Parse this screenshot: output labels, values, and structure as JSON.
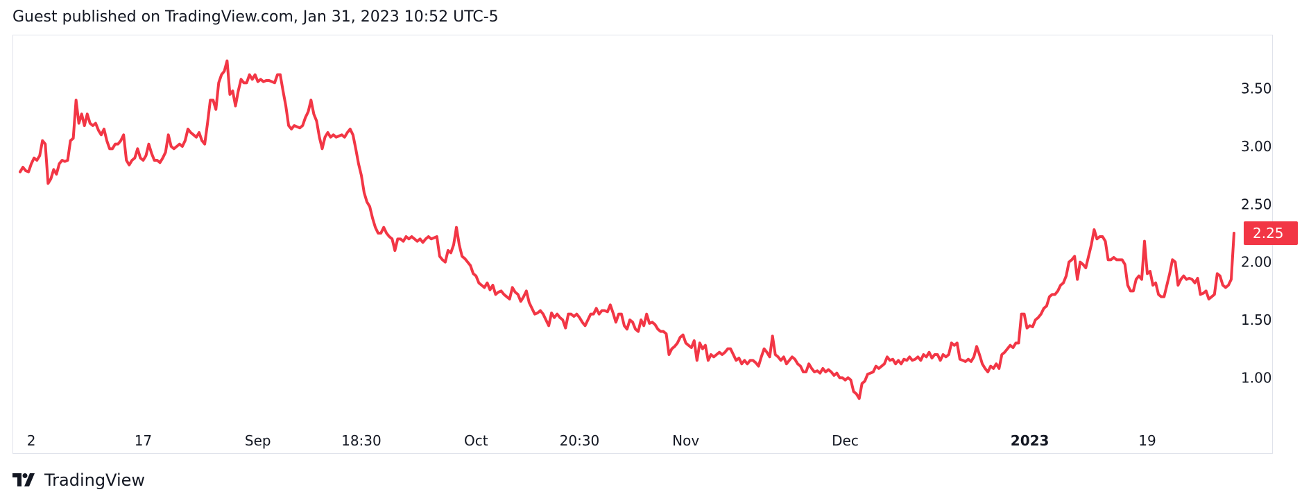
{
  "header": {
    "published": "Guest published on TradingView.com, Jan 31, 2023 10:52 UTC-5"
  },
  "footer": {
    "brand": "TradingView",
    "logo_icon": "tradingview-logo-icon"
  },
  "colors": {
    "line": "#f23645",
    "label_bg": "#f23645",
    "label_text": "#ffffff",
    "border": "#e0e3eb",
    "text": "#131722"
  },
  "chart_data": {
    "type": "line",
    "title": "",
    "xlabel": "",
    "ylabel": "",
    "grid": false,
    "ylim": [
      0.6,
      3.9
    ],
    "y_ticks": [
      {
        "value": 1.0,
        "label": "1.00"
      },
      {
        "value": 1.5,
        "label": "1.50"
      },
      {
        "value": 2.0,
        "label": "2.00"
      },
      {
        "value": 2.5,
        "label": "2.50"
      },
      {
        "value": 3.0,
        "label": "3.00"
      },
      {
        "value": 3.5,
        "label": "3.50"
      }
    ],
    "x_ticks": [
      {
        "index": 4,
        "label": "2",
        "bold": false
      },
      {
        "index": 44,
        "label": "17",
        "bold": false
      },
      {
        "index": 85,
        "label": "Sep",
        "bold": false
      },
      {
        "index": 122,
        "label": "18:30",
        "bold": false
      },
      {
        "index": 163,
        "label": "Oct",
        "bold": false
      },
      {
        "index": 200,
        "label": "20:30",
        "bold": false
      },
      {
        "index": 238,
        "label": "Nov",
        "bold": false
      },
      {
        "index": 295,
        "label": "Dec",
        "bold": false
      },
      {
        "index": 361,
        "label": "2023",
        "bold": true
      },
      {
        "index": 403,
        "label": "19",
        "bold": false
      }
    ],
    "last_price_label": "2.25",
    "series": [
      {
        "values": [
          2.78,
          2.82,
          2.79,
          2.78,
          2.85,
          2.9,
          2.88,
          2.92,
          3.05,
          3.02,
          2.68,
          2.72,
          2.8,
          2.76,
          2.85,
          2.88,
          2.87,
          2.88,
          3.05,
          3.07,
          3.4,
          3.2,
          3.28,
          3.18,
          3.28,
          3.2,
          3.18,
          3.2,
          3.14,
          3.1,
          3.15,
          3.05,
          2.98,
          2.98,
          3.02,
          3.02,
          3.05,
          3.1,
          2.88,
          2.84,
          2.88,
          2.9,
          2.98,
          2.9,
          2.88,
          2.92,
          3.02,
          2.94,
          2.88,
          2.88,
          2.86,
          2.9,
          2.95,
          3.1,
          3.0,
          2.98,
          3.0,
          3.02,
          3.0,
          3.05,
          3.15,
          3.12,
          3.1,
          3.08,
          3.12,
          3.05,
          3.02,
          3.2,
          3.4,
          3.4,
          3.32,
          3.55,
          3.62,
          3.65,
          3.74,
          3.45,
          3.48,
          3.35,
          3.48,
          3.58,
          3.55,
          3.55,
          3.62,
          3.58,
          3.62,
          3.56,
          3.58,
          3.56,
          3.57,
          3.57,
          3.56,
          3.55,
          3.62,
          3.62,
          3.48,
          3.35,
          3.18,
          3.15,
          3.18,
          3.17,
          3.16,
          3.18,
          3.25,
          3.3,
          3.4,
          3.28,
          3.22,
          3.08,
          2.98,
          3.08,
          3.12,
          3.08,
          3.1,
          3.08,
          3.09,
          3.1,
          3.08,
          3.12,
          3.15,
          3.1,
          2.98,
          2.85,
          2.75,
          2.6,
          2.52,
          2.48,
          2.38,
          2.3,
          2.25,
          2.25,
          2.3,
          2.25,
          2.22,
          2.2,
          2.1,
          2.2,
          2.2,
          2.18,
          2.22,
          2.2,
          2.22,
          2.2,
          2.18,
          2.2,
          2.17,
          2.2,
          2.22,
          2.2,
          2.21,
          2.22,
          2.05,
          2.02,
          2.0,
          2.1,
          2.08,
          2.15,
          2.3,
          2.15,
          2.05,
          2.03,
          2.0,
          1.97,
          1.9,
          1.88,
          1.82,
          1.8,
          1.78,
          1.82,
          1.76,
          1.8,
          1.72,
          1.74,
          1.75,
          1.72,
          1.7,
          1.68,
          1.78,
          1.74,
          1.72,
          1.66,
          1.7,
          1.75,
          1.65,
          1.6,
          1.55,
          1.56,
          1.58,
          1.55,
          1.5,
          1.45,
          1.56,
          1.52,
          1.55,
          1.52,
          1.5,
          1.43,
          1.55,
          1.55,
          1.53,
          1.55,
          1.52,
          1.48,
          1.45,
          1.5,
          1.55,
          1.55,
          1.6,
          1.55,
          1.58,
          1.58,
          1.57,
          1.63,
          1.56,
          1.48,
          1.55,
          1.55,
          1.45,
          1.42,
          1.5,
          1.48,
          1.42,
          1.4,
          1.5,
          1.45,
          1.55,
          1.47,
          1.48,
          1.46,
          1.42,
          1.4,
          1.4,
          1.38,
          1.2,
          1.25,
          1.27,
          1.3,
          1.35,
          1.37,
          1.3,
          1.28,
          1.26,
          1.32,
          1.15,
          1.3,
          1.25,
          1.28,
          1.15,
          1.2,
          1.18,
          1.2,
          1.22,
          1.2,
          1.22,
          1.25,
          1.25,
          1.2,
          1.15,
          1.17,
          1.12,
          1.15,
          1.12,
          1.15,
          1.15,
          1.13,
          1.1,
          1.18,
          1.25,
          1.22,
          1.18,
          1.36,
          1.2,
          1.18,
          1.15,
          1.18,
          1.12,
          1.15,
          1.18,
          1.16,
          1.12,
          1.1,
          1.05,
          1.05,
          1.12,
          1.08,
          1.05,
          1.06,
          1.04,
          1.08,
          1.05,
          1.07,
          1.05,
          1.02,
          1.04,
          1.0,
          1.0,
          0.98,
          1.0,
          0.98,
          0.88,
          0.86,
          0.82,
          0.95,
          0.97,
          1.03,
          1.04,
          1.05,
          1.1,
          1.08,
          1.1,
          1.12,
          1.18,
          1.15,
          1.16,
          1.12,
          1.15,
          1.12,
          1.16,
          1.15,
          1.18,
          1.15,
          1.16,
          1.18,
          1.15,
          1.2,
          1.18,
          1.22,
          1.17,
          1.2,
          1.2,
          1.15,
          1.2,
          1.18,
          1.2,
          1.3,
          1.28,
          1.3,
          1.16,
          1.15,
          1.14,
          1.16,
          1.14,
          1.18,
          1.27,
          1.2,
          1.12,
          1.08,
          1.05,
          1.1,
          1.08,
          1.12,
          1.08,
          1.2,
          1.22,
          1.25,
          1.28,
          1.26,
          1.3,
          1.3,
          1.55,
          1.55,
          1.43,
          1.45,
          1.44,
          1.5,
          1.52,
          1.55,
          1.6,
          1.62,
          1.7,
          1.72,
          1.72,
          1.75,
          1.8,
          1.82,
          1.88,
          2.0,
          2.02,
          2.05,
          1.85,
          2.0,
          1.98,
          1.95,
          2.05,
          2.15,
          2.28,
          2.2,
          2.22,
          2.22,
          2.18,
          2.02,
          2.02,
          2.04,
          2.02,
          2.02,
          2.02,
          1.98,
          1.8,
          1.75,
          1.75,
          1.85,
          1.88,
          1.85,
          2.18,
          1.9,
          1.92,
          1.8,
          1.82,
          1.72,
          1.7,
          1.7,
          1.8,
          1.9,
          2.02,
          2.0,
          1.8,
          1.85,
          1.88,
          1.85,
          1.86,
          1.85,
          1.82,
          1.86,
          1.72,
          1.73,
          1.75,
          1.68,
          1.7,
          1.72,
          1.9,
          1.88,
          1.8,
          1.78,
          1.8,
          1.85,
          2.25
        ]
      }
    ]
  }
}
